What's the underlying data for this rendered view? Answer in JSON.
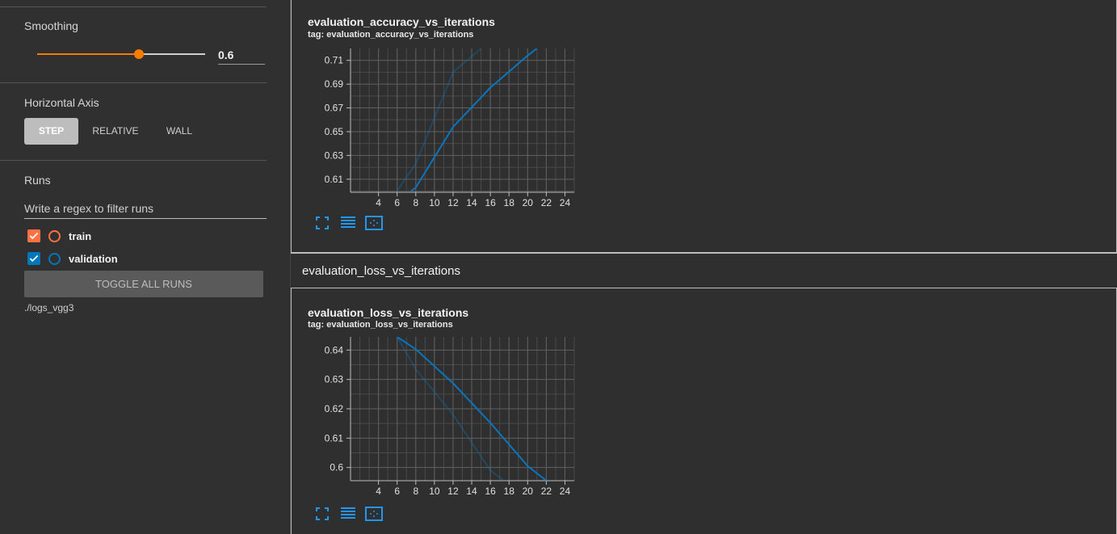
{
  "sidebar": {
    "smoothing": {
      "label": "Smoothing",
      "value": "0.6",
      "fraction": 0.6
    },
    "horizontal_axis": {
      "label": "Horizontal Axis",
      "options": [
        "STEP",
        "RELATIVE",
        "WALL"
      ],
      "selected": "STEP"
    },
    "runs": {
      "label": "Runs",
      "filter_placeholder": "Write a regex to filter runs",
      "items": [
        {
          "name": "train",
          "checked": true,
          "color": "#ff7043"
        },
        {
          "name": "validation",
          "checked": true,
          "color": "#0077bb"
        }
      ],
      "toggle_all_label": "TOGGLE ALL RUNS",
      "logdir": "./logs_vgg3"
    }
  },
  "main": {
    "group_title": "evaluation_loss_vs_iterations",
    "cards": [
      {
        "title": "evaluation_accuracy_vs_iterations",
        "tag": "tag: evaluation_accuracy_vs_iterations"
      },
      {
        "title": "evaluation_loss_vs_iterations",
        "tag": "tag: evaluation_loss_vs_iterations"
      }
    ]
  },
  "icons": {
    "fullscreen": "fullscreen-icon",
    "data_table": "data-table-icon",
    "fit_domain": "fit-domain-icon"
  },
  "chart_data": [
    {
      "type": "line",
      "title": "evaluation_accuracy_vs_iterations",
      "xlabel": "",
      "ylabel": "",
      "x_ticks": [
        4,
        6,
        8,
        10,
        12,
        14,
        16,
        18,
        20,
        22,
        24
      ],
      "y_ticks": [
        0.61,
        0.63,
        0.65,
        0.67,
        0.69,
        0.71
      ],
      "xlim": [
        1,
        25
      ],
      "ylim": [
        0.599,
        0.72
      ],
      "grid": true,
      "series": [
        {
          "color": "#0a75bf",
          "opacity": 1,
          "x": [
            7.5,
            8,
            12,
            16,
            20,
            21
          ],
          "y": [
            0.6,
            0.603,
            0.654,
            0.687,
            0.714,
            0.72
          ]
        },
        {
          "color": "#0a75bf",
          "opacity": 0.35,
          "x": [
            6,
            8,
            12,
            15
          ],
          "y": [
            0.6,
            0.623,
            0.7,
            0.72
          ]
        }
      ]
    },
    {
      "type": "line",
      "title": "evaluation_loss_vs_iterations",
      "xlabel": "",
      "ylabel": "",
      "x_ticks": [
        4,
        6,
        8,
        10,
        12,
        14,
        16,
        18,
        20,
        22,
        24
      ],
      "y_ticks": [
        0.6,
        0.61,
        0.62,
        0.63,
        0.64
      ],
      "xlim": [
        1,
        25
      ],
      "ylim": [
        0.5955,
        0.6445
      ],
      "grid": true,
      "series": [
        {
          "color": "#0a75bf",
          "opacity": 1,
          "x": [
            6,
            8,
            12,
            16,
            20,
            22
          ],
          "y": [
            0.6445,
            0.6403,
            0.6287,
            0.6152,
            0.6005,
            0.5955
          ]
        },
        {
          "color": "#0a75bf",
          "opacity": 0.35,
          "x": [
            6,
            8,
            12,
            16,
            17.5
          ],
          "y": [
            0.6445,
            0.6335,
            0.618,
            0.599,
            0.5955
          ]
        }
      ]
    }
  ]
}
